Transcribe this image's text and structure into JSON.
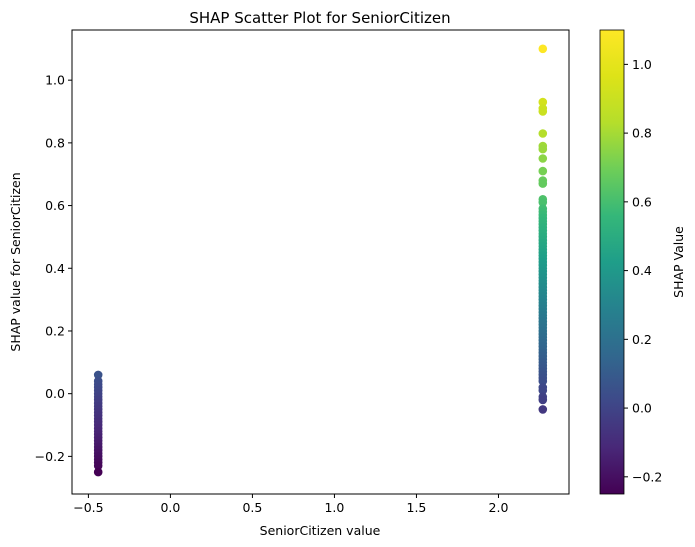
{
  "chart_data": {
    "type": "scatter",
    "title": "SHAP Scatter Plot for SeniorCitizen",
    "xlabel": "SeniorCitizen value",
    "ylabel": "SHAP value for SeniorCitizen",
    "xlim": [
      -0.6,
      2.43
    ],
    "ylim": [
      -0.32,
      1.16
    ],
    "x_ticks": [
      -0.5,
      0.0,
      0.5,
      1.0,
      1.5,
      2.0
    ],
    "x_tick_labels": [
      "−0.5",
      "0.0",
      "0.5",
      "1.0",
      "1.5",
      "2.0"
    ],
    "y_ticks": [
      -0.2,
      0.0,
      0.2,
      0.4,
      0.6,
      0.8,
      1.0
    ],
    "y_tick_labels": [
      "−0.2",
      "0.0",
      "0.2",
      "0.4",
      "0.6",
      "0.8",
      "1.0"
    ],
    "grid": false,
    "colormap": "viridis",
    "colorbar": {
      "label": "SHAP Value",
      "range": [
        -0.25,
        1.1
      ],
      "ticks": [
        -0.2,
        0.0,
        0.2,
        0.4,
        0.6,
        0.8,
        1.0
      ],
      "tick_labels": [
        "−0.2",
        "0.0",
        "0.2",
        "0.4",
        "0.6",
        "0.8",
        "1.0"
      ]
    },
    "series": [
      {
        "x": -0.44,
        "y": [
          0.06,
          0.04,
          0.03,
          0.02,
          0.01,
          0.0,
          -0.01,
          -0.02,
          -0.03,
          -0.04,
          -0.05,
          -0.06,
          -0.07,
          -0.08,
          -0.09,
          -0.1,
          -0.11,
          -0.12,
          -0.13,
          -0.14,
          -0.15,
          -0.16,
          -0.17,
          -0.18,
          -0.19,
          -0.2,
          -0.21,
          -0.22,
          -0.23,
          -0.25
        ]
      },
      {
        "x": 2.27,
        "y": [
          1.1,
          0.93,
          0.91,
          0.9,
          0.83,
          0.79,
          0.78,
          0.75,
          0.71,
          0.68,
          0.67,
          0.62,
          0.61,
          0.59,
          0.58,
          0.57,
          0.56,
          0.55,
          0.54,
          0.53,
          0.52,
          0.51,
          0.5,
          0.49,
          0.48,
          0.47,
          0.46,
          0.45,
          0.44,
          0.43,
          0.42,
          0.41,
          0.4,
          0.39,
          0.38,
          0.37,
          0.36,
          0.35,
          0.34,
          0.33,
          0.32,
          0.31,
          0.3,
          0.29,
          0.28,
          0.27,
          0.26,
          0.25,
          0.24,
          0.23,
          0.22,
          0.21,
          0.2,
          0.19,
          0.18,
          0.17,
          0.16,
          0.15,
          0.14,
          0.13,
          0.12,
          0.11,
          0.1,
          0.09,
          0.08,
          0.07,
          0.06,
          0.05,
          0.04,
          0.02,
          0.01,
          -0.01,
          -0.02,
          -0.05
        ]
      }
    ]
  }
}
